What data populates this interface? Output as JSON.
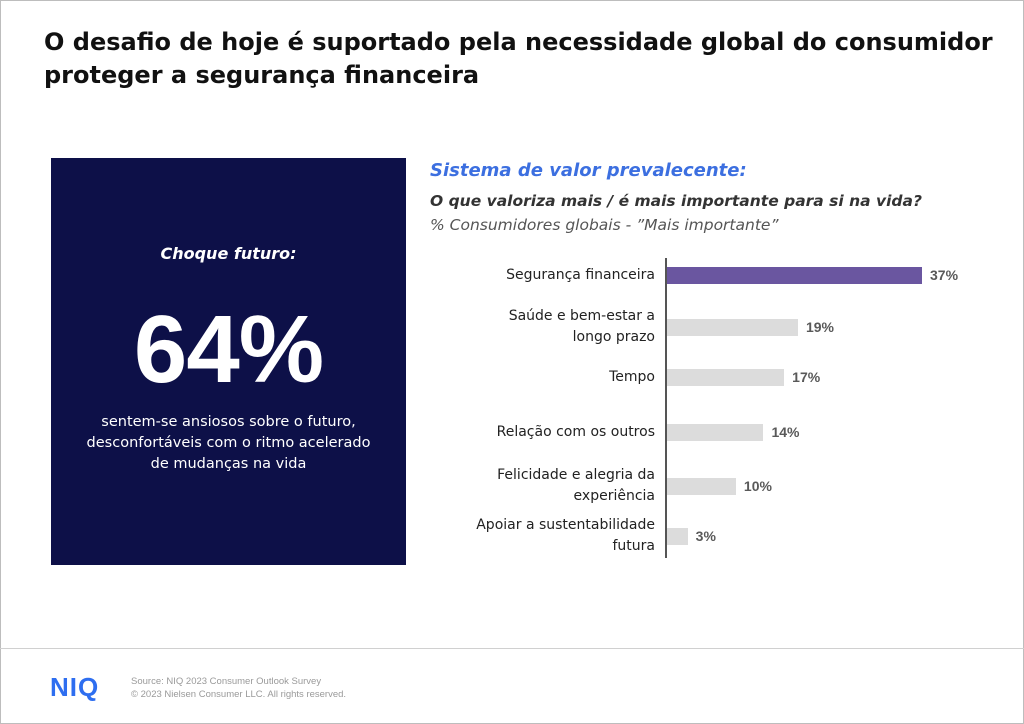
{
  "title": "O desafio de hoje é suportado pela necessidade global do consumidor proteger a segurança financeira",
  "highlight": {
    "label": "Choque futuro:",
    "value": "64%",
    "description": "sentem-se ansiosos sobre o futuro, desconfortáveis com o ritmo acelerado de mudanças na vida"
  },
  "chart_data": {
    "type": "bar",
    "orientation": "horizontal",
    "title": "Sistema de valor prevalecente:",
    "subtitle": "O que valoriza mais / é mais importante para si na vida?",
    "note": "% Consumidores globais - ”Mais importante”",
    "categories": [
      "Segurança financeira",
      "Saúde e bem-estar a longo prazo",
      "Tempo",
      "Relação com os outros",
      "Felicidade e alegria da experiência",
      "Apoiar a sustentabilidade futura"
    ],
    "category_lines": [
      [
        "Segurança financeira"
      ],
      [
        "Saúde e bem-estar a ",
        "longo prazo"
      ],
      [
        "Tempo"
      ],
      [
        "Relação com os outros"
      ],
      [
        "Felicidade e alegria da",
        "experiência"
      ],
      [
        "Apoiar a sustentabilidade",
        "futura"
      ]
    ],
    "values": [
      37,
      19,
      17,
      14,
      10,
      3
    ],
    "value_labels": [
      "37%",
      "19%",
      "17%",
      "14%",
      "10%",
      "3%"
    ],
    "unit": "%",
    "xlim": [
      0,
      37
    ],
    "colors": {
      "highlight": "#6a56a0",
      "default": "#dcdcdc"
    },
    "highlight_index": 0,
    "grid": false,
    "legend": "none"
  },
  "footer": {
    "logo": "NIQ",
    "source": "Source: NIQ 2023 Consumer Outlook Survey",
    "copyright": "© 2023 Nielsen Consumer LLC. All rights reserved."
  }
}
